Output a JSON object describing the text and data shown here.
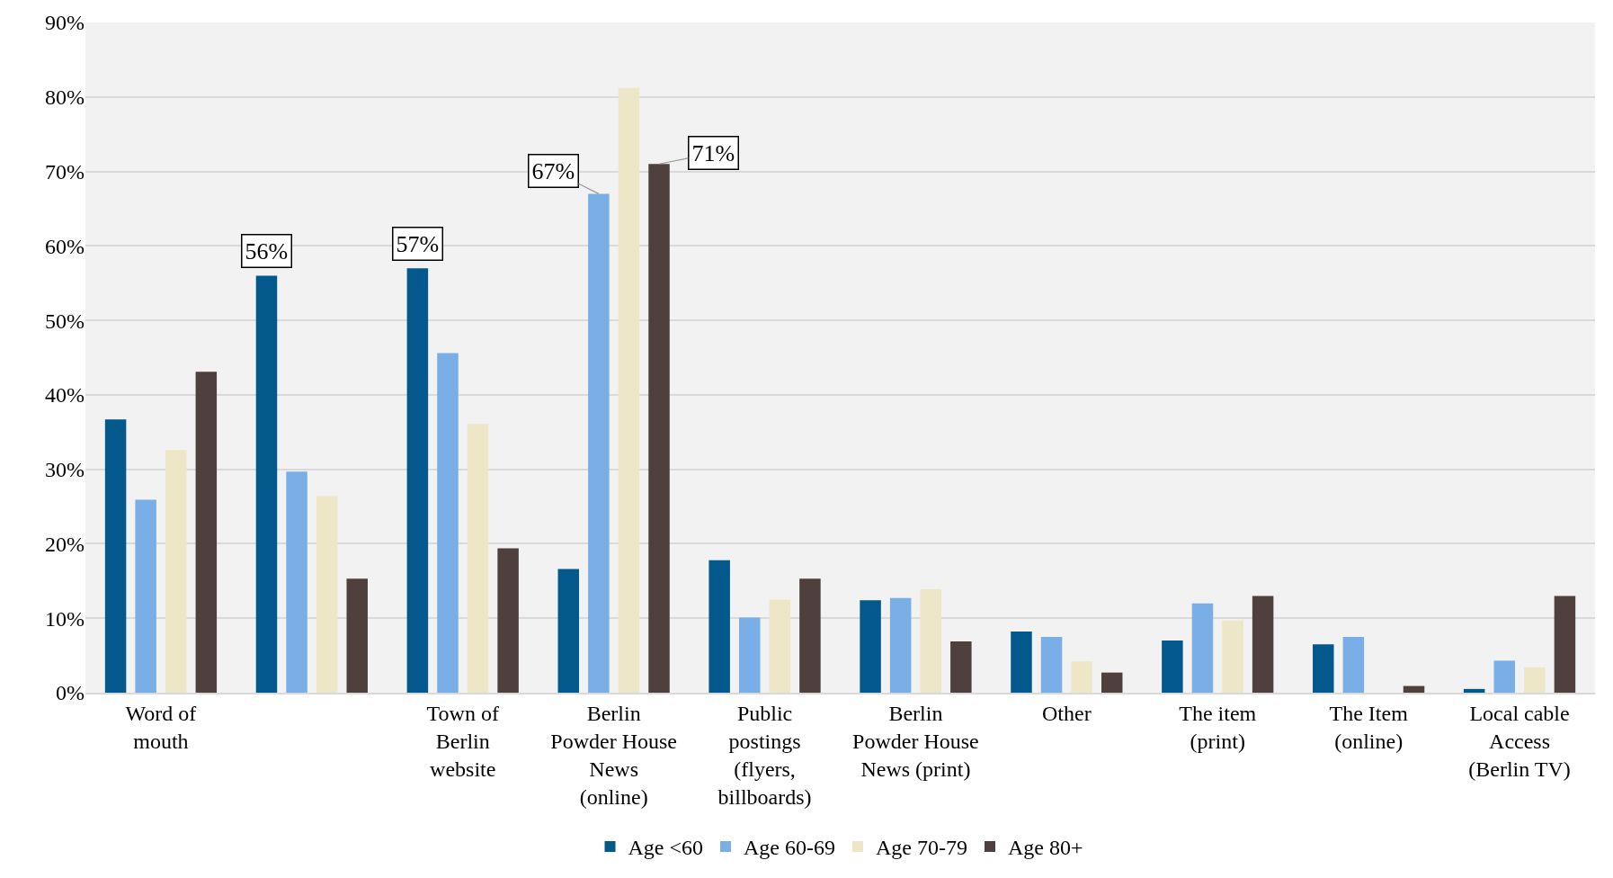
{
  "chart_data": {
    "type": "bar",
    "categories": [
      "Word of mouth",
      null,
      "Town of Berlin website",
      "Berlin Powder House News (online)",
      "Public postings (flyers, billboards)",
      "Berlin Powder House News (print)",
      "Other",
      "The item (print)",
      "The Item (online)",
      "Local cable Access (Berlin TV)"
    ],
    "series": [
      {
        "name": "Age <60",
        "color": "#03598c",
        "values": [
          36.7,
          56,
          57,
          16.6,
          17.8,
          12.4,
          8.2,
          7.0,
          6.5,
          0.5
        ],
        "value_labels": [
          null,
          "56%",
          "57%",
          null,
          null,
          null,
          null,
          null,
          null,
          null
        ]
      },
      {
        "name": "Age 60-69",
        "color": "#7aaee6",
        "values": [
          25.9,
          29.7,
          45.6,
          67,
          10.1,
          12.7,
          7.5,
          12.0,
          7.5,
          4.3
        ],
        "value_labels": [
          null,
          null,
          null,
          "67%",
          null,
          null,
          null,
          null,
          null,
          null
        ]
      },
      {
        "name": "Age 70-79",
        "color": "#ede7c8",
        "values": [
          32.6,
          26.4,
          36.1,
          81.2,
          12.5,
          13.9,
          4.2,
          9.7,
          0,
          3.4
        ]
      },
      {
        "name": "Age 80+",
        "color": "#4f403d",
        "values": [
          43.1,
          15.3,
          19.4,
          71,
          15.3,
          6.9,
          2.7,
          13.0,
          0.9,
          13.0
        ],
        "value_labels": [
          null,
          null,
          null,
          "71%",
          null,
          null,
          null,
          null,
          null,
          null
        ]
      }
    ],
    "ylim": [
      0,
      90
    ],
    "yticks": [
      {
        "value": 0,
        "label": "0%"
      },
      {
        "value": 10,
        "label": "10%"
      },
      {
        "value": 20,
        "label": "20%"
      },
      {
        "value": 30,
        "label": "30%"
      },
      {
        "value": 40,
        "label": "40%"
      },
      {
        "value": 50,
        "label": "50%"
      },
      {
        "value": 60,
        "label": "60%"
      },
      {
        "value": 70,
        "label": "70%"
      },
      {
        "value": 80,
        "label": "80%"
      },
      {
        "value": 90,
        "label": "90%"
      }
    ],
    "grid": "y",
    "legend": "bottom"
  }
}
